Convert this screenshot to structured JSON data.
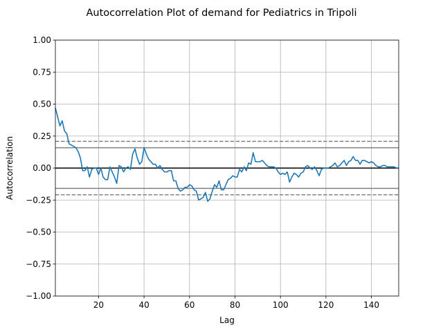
{
  "chart_data": {
    "type": "line",
    "title": "Autocorrelation Plot of demand for Pediatrics in Tripoli",
    "xlabel": "Lag",
    "ylabel": "Autocorrelation",
    "xlim": [
      1,
      152
    ],
    "ylim": [
      -1.0,
      1.0
    ],
    "xticks": [
      20,
      40,
      60,
      80,
      100,
      120,
      140
    ],
    "yticks": [
      -1.0,
      -0.75,
      -0.5,
      -0.25,
      0.0,
      0.25,
      0.5,
      0.75,
      1.0
    ],
    "ytick_labels": [
      "−1.00",
      "−0.75",
      "−0.50",
      "−0.25",
      "0.00",
      "0.25",
      "0.50",
      "0.75",
      "1.00"
    ],
    "grid": true,
    "reference_lines": {
      "zero": 0.0,
      "ci95": [
        0.159,
        -0.159
      ],
      "ci99": [
        0.209,
        -0.209
      ]
    },
    "colors": {
      "series": "#1f77b4",
      "grid": "#b0b0b0",
      "ci": "#808080",
      "zero": "#000000"
    },
    "series": [
      {
        "x": [
          1,
          2,
          3,
          4,
          5,
          6,
          7,
          8,
          9,
          10,
          11,
          12,
          13,
          14,
          15,
          16,
          17,
          18,
          19,
          20,
          21,
          22,
          23,
          24,
          25,
          26,
          27,
          28,
          29,
          30,
          31,
          32,
          33,
          34,
          35,
          36,
          37,
          38,
          39,
          40,
          41,
          42,
          43,
          44,
          45,
          46,
          47,
          48,
          49,
          50,
          51,
          52,
          53,
          54,
          55,
          56,
          57,
          58,
          59,
          60,
          61,
          62,
          63,
          64,
          65,
          66,
          67,
          68,
          69,
          70,
          71,
          72,
          73,
          74,
          75,
          76,
          77,
          78,
          79,
          80,
          81,
          82,
          83,
          84,
          85,
          86,
          87,
          88,
          89,
          90,
          91,
          92,
          93,
          94,
          95,
          96,
          97,
          98,
          99,
          100,
          101,
          102,
          103,
          104,
          105,
          106,
          107,
          108,
          109,
          110,
          111,
          112,
          113,
          114,
          115,
          116,
          117,
          118,
          119,
          120,
          121,
          122,
          123,
          124,
          125,
          126,
          127,
          128,
          129,
          130,
          131,
          132,
          133,
          134,
          135,
          136,
          137,
          138,
          139,
          140,
          141,
          142,
          143,
          144,
          145,
          146,
          147,
          148,
          149,
          150,
          151,
          152
        ],
        "values": [
          0.47,
          0.4,
          0.33,
          0.37,
          0.29,
          0.27,
          0.19,
          0.18,
          0.17,
          0.16,
          0.13,
          0.08,
          -0.02,
          -0.02,
          0.01,
          -0.07,
          -0.01,
          0.0,
          0.0,
          -0.05,
          0.0,
          -0.07,
          -0.09,
          -0.09,
          0.01,
          -0.03,
          -0.07,
          -0.12,
          0.02,
          0.01,
          -0.03,
          0.0,
          0.01,
          -0.01,
          0.11,
          0.15,
          0.08,
          0.03,
          0.05,
          0.16,
          0.11,
          0.07,
          0.05,
          0.03,
          0.03,
          0.0,
          0.02,
          -0.01,
          -0.03,
          -0.03,
          -0.02,
          -0.02,
          -0.1,
          -0.1,
          -0.16,
          -0.18,
          -0.17,
          -0.15,
          -0.15,
          -0.13,
          -0.14,
          -0.17,
          -0.18,
          -0.25,
          -0.24,
          -0.23,
          -0.19,
          -0.26,
          -0.24,
          -0.18,
          -0.13,
          -0.15,
          -0.1,
          -0.17,
          -0.17,
          -0.13,
          -0.09,
          -0.08,
          -0.06,
          -0.07,
          -0.07,
          -0.01,
          -0.03,
          0.01,
          -0.02,
          0.04,
          0.03,
          0.12,
          0.05,
          0.05,
          0.05,
          0.06,
          0.04,
          0.02,
          0.01,
          0.01,
          0.01,
          0.0,
          -0.03,
          -0.05,
          -0.04,
          -0.05,
          -0.03,
          -0.11,
          -0.07,
          -0.04,
          -0.05,
          -0.07,
          -0.04,
          -0.03,
          0.01,
          0.02,
          0.0,
          -0.01,
          0.01,
          -0.02,
          -0.06,
          -0.01,
          0.0,
          0.0,
          0.0,
          0.01,
          0.02,
          0.04,
          0.01,
          0.02,
          0.04,
          0.06,
          0.02,
          0.05,
          0.06,
          0.09,
          0.06,
          0.06,
          0.03,
          0.06,
          0.06,
          0.05,
          0.04,
          0.05,
          0.04,
          0.02,
          0.01,
          0.01,
          0.02,
          0.02,
          0.01,
          0.01,
          0.01,
          0.01,
          0.0,
          0.0
        ]
      }
    ]
  }
}
